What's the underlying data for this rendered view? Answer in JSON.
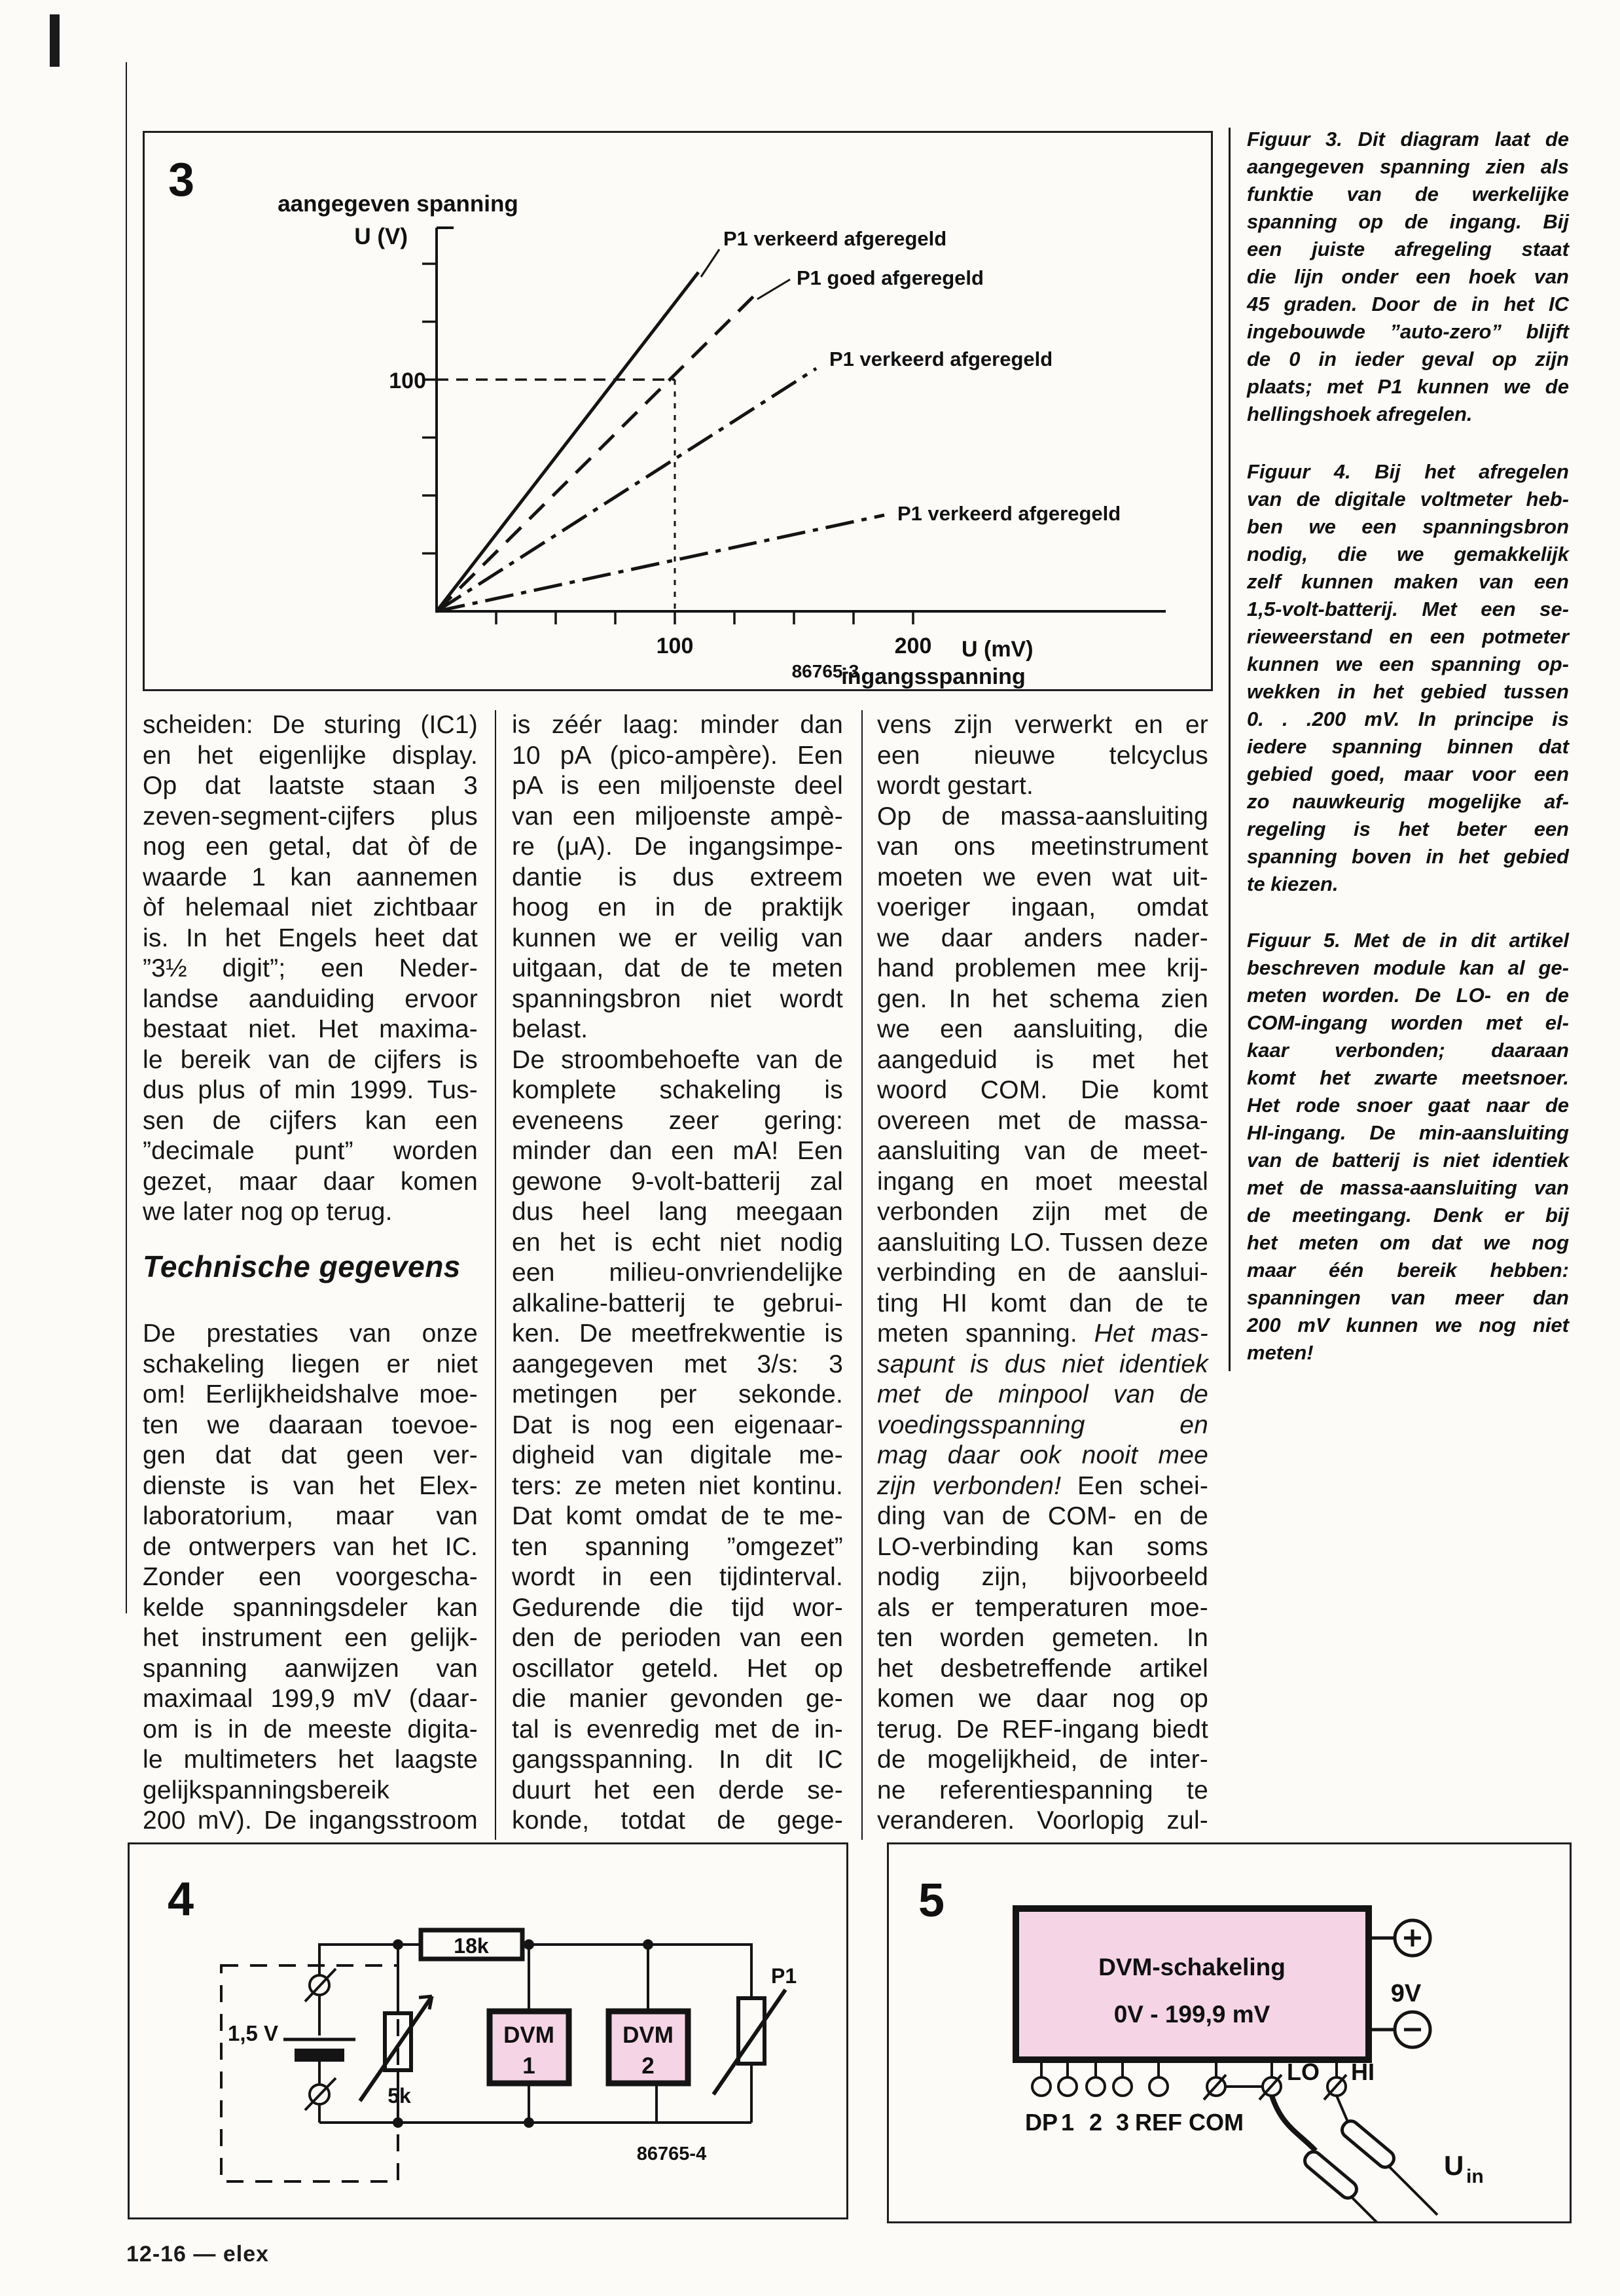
{
  "page": {
    "footer": "12-16 — elex"
  },
  "chart_data": {
    "type": "line",
    "figure_label": "3",
    "title": "aangegeven spanning",
    "ylabel": "U (V)",
    "xlabel": "U (mV)",
    "xlabel2": "ingangsspanning",
    "ref": "86765-3",
    "x_ticks": [
      "100",
      "200"
    ],
    "y_ticks": [
      "100"
    ],
    "xlim": [
      0,
      220
    ],
    "ylim": [
      0,
      165
    ],
    "grid": false,
    "legend_position": "inline-labels",
    "annotation": {
      "note": "dashed guide lines at x=100 mV, y=100 V meeting the correctly adjusted line"
    },
    "series": [
      {
        "label": "P1 verkeerd afgeregeld",
        "style": "solid",
        "points": [
          [
            0,
            0
          ],
          [
            110,
            146
          ]
        ]
      },
      {
        "label": "P1 goed afgeregeld",
        "style": "dashed",
        "points": [
          [
            0,
            0
          ],
          [
            100,
            100
          ],
          [
            133,
            136
          ]
        ]
      },
      {
        "label": "P1 verkeerd afgeregeld",
        "style": "dashdot",
        "points": [
          [
            0,
            0
          ],
          [
            159,
            105
          ]
        ]
      },
      {
        "label": "P1 verkeerd afgeregeld",
        "style": "dashdot",
        "points": [
          [
            0,
            0
          ],
          [
            188,
            41
          ]
        ]
      }
    ]
  },
  "columns": {
    "heading": "Technische gegevens",
    "col1a": [
      "scheiden: De sturing (IC1)",
      "en het eigenlijke display.",
      "Op dat laatste staan 3",
      "zeven-segment-cijfers plus",
      "nog een getal, dat òf de",
      "waarde 1 kan aannemen",
      "òf helemaal niet zichtbaar",
      "is. In het Engels heet dat",
      "”3½ digit”; een Neder-",
      "landse aanduiding ervoor",
      "bestaat niet. Het maxima-",
      "le bereik van de cijfers is",
      "dus plus of min 1999. Tus-",
      "sen de cijfers kan een",
      "”decimale punt” worden",
      "gezet, maar daar komen",
      {
        "t": "we later nog op terug.",
        "end": true
      }
    ],
    "col1b": [
      "De prestaties van onze",
      "schakeling liegen er niet",
      "om! Eerlijkheidshalve moe-",
      "ten we daaraan toevoe-",
      "gen dat dat geen ver-",
      "dienste is van het Elex-",
      "laboratorium, maar van",
      "de ontwerpers van het IC.",
      "Zonder een voorgescha-",
      "kelde spanningsdeler kan",
      "het instrument een gelijk-",
      "spanning aanwijzen van",
      "maximaal 199,9 mV (daar-",
      "om is in de meeste digita-",
      "le multimeters het laagste",
      {
        "t": "gelijkspanningsbereik",
        "end": true
      },
      "200 mV). De ingangsstroom"
    ],
    "col2": [
      "is zéér laag: minder dan",
      "10 pA (pico-ampère). Een",
      "pA is een miljoenste deel",
      "van een miljoenste ampè-",
      "re (μA). De ingangsimpe-",
      "dantie is dus extreem",
      "hoog en in de praktijk",
      "kunnen we er veilig van",
      "uitgaan, dat de te meten",
      "spanningsbron niet wordt",
      {
        "t": "belast.",
        "end": true
      },
      "De stroombehoefte van de",
      "komplete schakeling is",
      "eveneens zeer gering:",
      "minder dan een mA! Een",
      "gewone 9-volt-batterij zal",
      "dus heel lang meegaan",
      "en het is echt niet nodig",
      "een milieu-onvriendelijke",
      "alkaline-batterij te gebrui-",
      "ken. De meetfrekwentie is",
      "aangegeven met 3/s: 3",
      "metingen per sekonde.",
      "Dat is nog een eigenaar-",
      "digheid van digitale me-",
      "ters: ze meten niet kontinu.",
      "Dat komt omdat de te me-",
      "ten spanning ”omgezet”",
      "wordt in een tijdinterval.",
      "Gedurende die tijd wor-",
      "den de perioden van een",
      "oscillator geteld. Het op",
      "die manier gevonden ge-",
      "tal is evenredig met de in-",
      "gangsspanning. In dit IC",
      "duurt het een derde se-",
      "konde, totdat de gege-"
    ],
    "col3": [
      "vens zijn verwerkt en er",
      "een nieuwe telcyclus",
      {
        "t": "wordt gestart.",
        "end": true
      },
      "Op de massa-aansluiting",
      "van ons meetinstrument",
      "moeten we even wat uit-",
      "voeriger ingaan, omdat",
      "we daar anders nader-",
      "hand problemen mee krij-",
      "gen. In het schema zien",
      "we een aansluiting, die",
      "aangeduid is met het",
      "woord COM. Die komt",
      "overeen met de massa-",
      "aansluiting van de meet-",
      "ingang en moet meestal",
      "verbonden zijn met de",
      "aansluiting LO. Tussen deze",
      "verbinding en de aanslui-",
      "ting HI komt dan de te",
      {
        "parts": [
          {
            "t": "meten spanning. "
          },
          {
            "t": "Het mas-",
            "i": true
          }
        ]
      },
      {
        "t": "sapunt is dus niet identiek",
        "i": true
      },
      {
        "t": "met de minpool van de",
        "i": true
      },
      {
        "t": "voedingsspanning en",
        "i": true
      },
      {
        "t": "mag daar ook nooit mee",
        "i": true
      },
      {
        "parts": [
          {
            "t": "zijn verbonden! ",
            "i": true
          },
          {
            "t": "Een schei-"
          }
        ]
      },
      "ding van de COM- en de",
      "LO-verbinding kan soms",
      "nodig zijn, bijvoorbeeld",
      "als er temperaturen moe-",
      "ten worden gemeten. In",
      "het desbetreffende artikel",
      "komen we daar nog op",
      "terug. De REF-ingang biedt",
      "de mogelijkheid, de inter-",
      "ne referentiespanning te",
      "veranderen. Voorlopig zul-"
    ]
  },
  "captions": {
    "fig3": [
      "Figuur 3. Dit diagram laat de",
      "aangegeven spanning zien als",
      "funktie van de werkelijke",
      "spanning op de ingang. Bij",
      "een juiste afregeling staat",
      "die lijn onder een hoek van",
      "45 graden. Door de in het IC",
      "ingebouwde ”auto-zero” blijft",
      "de 0 in ieder geval op zijn",
      "plaats; met P1 kunnen we de",
      {
        "t": "hellingshoek afregelen.",
        "end": true
      }
    ],
    "fig4": [
      "Figuur 4. Bij het afregelen",
      "van de digitale voltmeter heb-",
      "ben we een spanningsbron",
      "nodig, die we gemakkelijk",
      "zelf kunnen maken van een",
      "1,5-volt-batterij. Met een se-",
      "rieweerstand en een potmeter",
      "kunnen we een spanning op-",
      "wekken in het gebied tussen",
      "0. . .200 mV. In principe is",
      "iedere spanning binnen dat",
      "gebied goed, maar voor een",
      "zo nauwkeurig mogelijke af-",
      "regeling is het beter een",
      "spanning boven in het gebied",
      {
        "t": "te kiezen.",
        "end": true
      }
    ],
    "fig5": [
      "Figuur 5. Met de in dit artikel",
      "beschreven module kan al ge-",
      "meten worden. De LO- en de",
      "COM-ingang worden met el-",
      "kaar verbonden; daaraan",
      "komt het zwarte meetsnoer.",
      "Het rode snoer gaat naar de",
      "HI-ingang. De min-aansluiting",
      "van de batterij is niet identiek",
      "met de massa-aansluiting van",
      "de meetingang. Denk er bij",
      "het meten om dat we nog",
      "maar één bereik hebben:",
      "spanningen van meer dan",
      "200 mV kunnen we nog niet",
      {
        "t": "meten!",
        "end": true
      }
    ]
  },
  "figure4": {
    "number": "4",
    "resistor": "18k",
    "battery": "1,5 V",
    "pot": "5k",
    "dvm": "DVM",
    "dvm1": "1",
    "dvm2": "2",
    "p1": "P1",
    "ref": "86765-4"
  },
  "figure5": {
    "number": "5",
    "title": "DVM-schakeling",
    "range": "0V - 199,9 mV",
    "supply": "9V",
    "terminals": [
      "DP",
      "1",
      "2",
      "3",
      "REF",
      "COM"
    ],
    "lo": "LO",
    "hi": "HI",
    "uin": "U",
    "uin_sub": "in",
    "accent_pink": "#f5d5e5"
  }
}
